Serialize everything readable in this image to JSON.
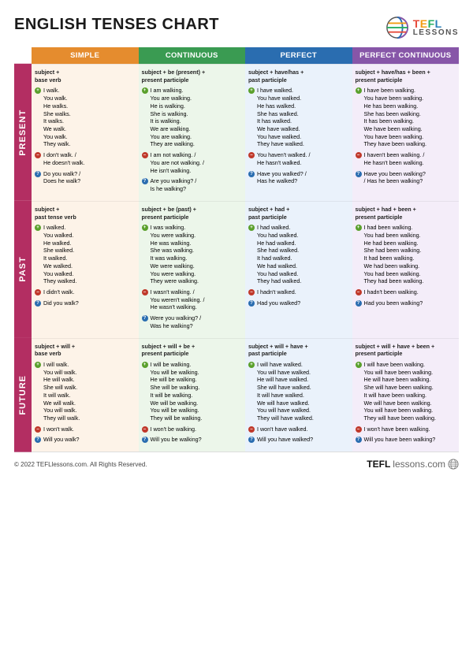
{
  "title": "ENGLISH TENSES CHART",
  "brand": {
    "tefl": "TEFL",
    "lessons": "LESSONS"
  },
  "columns": [
    {
      "label": "SIMPLE",
      "header_bg": "#e58c2e",
      "cell_bg": "#fdf3e8"
    },
    {
      "label": "CONTINUOUS",
      "header_bg": "#3a9b52",
      "cell_bg": "#ecf6ea"
    },
    {
      "label": "PERFECT",
      "header_bg": "#2a6db0",
      "cell_bg": "#eaf2fb"
    },
    {
      "label": "PERFECT CONTINUOUS",
      "header_bg": "#8756a8",
      "cell_bg": "#f4edf9"
    }
  ],
  "rows": [
    {
      "label": "PRESENT",
      "bg": "#b32e62"
    },
    {
      "label": "PAST",
      "bg": "#b32e62"
    },
    {
      "label": "FUTURE",
      "bg": "#b32e62"
    }
  ],
  "icon_colors": {
    "plus": "#5aa02c",
    "minus": "#c0392b",
    "q": "#2a6db0"
  },
  "cells": [
    [
      {
        "formula": "subject +\nbase verb",
        "plus": [
          "I walk.",
          "You walk.",
          "He walks.",
          "She walks.",
          "It walks.",
          "We walk.",
          "You walk.",
          "They walk."
        ],
        "minus": [
          "I don't walk. /",
          "He doesn't walk."
        ],
        "q": [
          "Do you walk? /",
          "Does he walk?"
        ]
      },
      {
        "formula": "subject + be (present) +\npresent participle",
        "plus": [
          "I am walking.",
          "You are walking.",
          "He is walking.",
          "She is walking.",
          "It is walking.",
          "We are walking.",
          "You are walking.",
          "They are walking."
        ],
        "minus": [
          "I am not walking. /",
          "You are not walking. /",
          "He isn't walking."
        ],
        "q": [
          "Are you walking? /",
          "Is he walking?"
        ]
      },
      {
        "formula": "subject + have/has +\npast participle",
        "plus": [
          "I have walked.",
          "You have walked.",
          "He has walked.",
          "She has walked.",
          "It has walked.",
          "We have walked.",
          "You have walked.",
          "They have walked."
        ],
        "minus": [
          "You haven't walked. /",
          "He hasn't walked."
        ],
        "q": [
          "Have you walked? /",
          "Has he walked?"
        ]
      },
      {
        "formula": "subject + have/has + been +\npresent participle",
        "plus": [
          "I have been walking.",
          "You have been walking.",
          "He has been walking.",
          "She has been walking.",
          "It has been walking.",
          "We have been walking.",
          "You have been walking.",
          "They have been walking."
        ],
        "minus": [
          "I haven't been walking. /",
          "He hasn't been walking."
        ],
        "q": [
          "Have you been walking?",
          "/ Has he been walking?"
        ]
      }
    ],
    [
      {
        "formula": "subject +\npast tense verb",
        "plus": [
          "I walked.",
          "You walked.",
          "He walked.",
          "She walked.",
          "It walked.",
          "We walked.",
          "You walked.",
          "They walked."
        ],
        "minus": [
          "I didn't walk."
        ],
        "q": [
          "Did you walk?"
        ]
      },
      {
        "formula": "subject + be (past) +\npresent participle",
        "plus": [
          "I was walking.",
          "You were walking.",
          "He was walking.",
          "She was walking.",
          "It was walking.",
          "We were walking.",
          "You were walking.",
          "They were walking."
        ],
        "minus": [
          "I wasn't walking. /",
          "You weren't walking. /",
          "He wasn't walking."
        ],
        "q": [
          "Were you walking? /",
          "Was he walking?"
        ]
      },
      {
        "formula": "subject + had +\npast participle",
        "plus": [
          "I had walked.",
          "You had walked.",
          "He had walked.",
          "She had walked.",
          "It had walked.",
          "We had walked.",
          "You had walked.",
          "They had walked."
        ],
        "minus": [
          "I hadn't walked."
        ],
        "q": [
          "Had you walked?"
        ]
      },
      {
        "formula": "subject + had + been +\npresent participle",
        "plus": [
          "I had been walking.",
          "You had been walking.",
          "He had been walking.",
          "She had been walking.",
          "It had been walking.",
          "We had been walking.",
          "You had been walking.",
          "They had been walking."
        ],
        "minus": [
          "I hadn't been walking."
        ],
        "q": [
          "Had you been walking?"
        ]
      }
    ],
    [
      {
        "formula": "subject + will +\nbase verb",
        "plus": [
          "I will walk.",
          "You will walk.",
          "He will walk.",
          "She will walk.",
          "It will walk.",
          "We will walk.",
          "You will walk.",
          "They will walk."
        ],
        "minus": [
          "I won't walk."
        ],
        "q": [
          "Will you walk?"
        ]
      },
      {
        "formula": "subject + will + be +\npresent participle",
        "plus": [
          "I will be walking.",
          "You will be walking.",
          "He will be walking.",
          "She will be walking.",
          "It will be walking.",
          "We will be walking.",
          "You will be walking.",
          "They will be walking."
        ],
        "minus": [
          "I won't be walking."
        ],
        "q": [
          "Will you be walking?"
        ]
      },
      {
        "formula": "subject + will + have +\npast participle",
        "plus": [
          "I will have walked.",
          "You will have walked.",
          "He will have walked.",
          "She will have walked.",
          "It will have walked.",
          "We will have walked.",
          "You will have walked.",
          "They will have walked."
        ],
        "minus": [
          "I won't have walked."
        ],
        "q": [
          "Will you have walked?"
        ]
      },
      {
        "formula": "subject + will + have + been +\npresent participle",
        "plus": [
          "I will have been walking.",
          "You will have been walking.",
          "He will have been walking.",
          "She will have been walking.",
          "It will have been walking.",
          "We will have been walking.",
          "You will have been walking.",
          "They will have been walking."
        ],
        "minus": [
          "I won't have been walking."
        ],
        "q": [
          "Will you have been walking?"
        ]
      }
    ]
  ],
  "footer": {
    "copyright": "© 2022 TEFLlessons.com. All Rights Reserved.",
    "brand_bold": "TEFL",
    "brand_light": "lessons.com"
  }
}
